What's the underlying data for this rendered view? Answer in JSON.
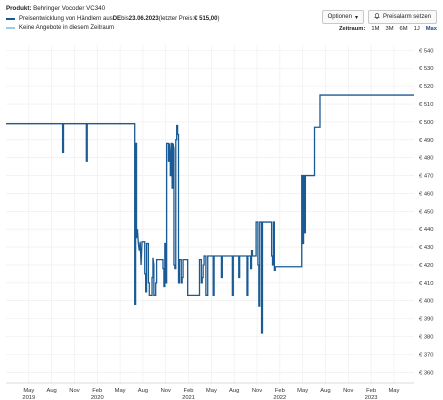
{
  "header": {
    "product_label": "Produkt:",
    "product_name": "Behringer Vocoder VC340"
  },
  "legend": {
    "items": [
      {
        "text_pre": "Preisentwicklung von Händlern aus ",
        "country": "DE",
        "text_mid": " bis ",
        "date": "23.06.2023",
        "text_post": " (letzter Preis: ",
        "price": "€ 515,00",
        "text_end": ")",
        "color": "#1a5b95"
      },
      {
        "text": "Keine Angebote in diesem Zeitraum",
        "color": "#9ecbe6"
      }
    ]
  },
  "buttons": {
    "options": "Optionen",
    "alarm": "Preisalarm setzen"
  },
  "zoom": {
    "label": "Zeitraum:",
    "options": [
      "1M",
      "3M",
      "6M",
      "1J",
      "Max"
    ],
    "active": "Max"
  },
  "colors": {
    "line": "#1a5b95",
    "grid": "#ececec"
  },
  "chart_data": {
    "type": "line",
    "y_ticks": [
      "€ 360",
      "€ 370",
      "€ 380",
      "€ 390",
      "€ 400",
      "€ 410",
      "€ 420",
      "€ 430",
      "€ 440",
      "€ 450",
      "€ 460",
      "€ 470",
      "€ 480",
      "€ 490",
      "€ 500",
      "€ 510",
      "€ 520",
      "€ 530",
      "€ 540"
    ],
    "x_ticks": [
      {
        "t": 2019.33,
        "m": "May",
        "y": "2019"
      },
      {
        "t": 2019.58,
        "m": "Aug",
        "y": ""
      },
      {
        "t": 2019.83,
        "m": "Nov",
        "y": ""
      },
      {
        "t": 2020.08,
        "m": "Feb",
        "y": "2020"
      },
      {
        "t": 2020.33,
        "m": "May",
        "y": ""
      },
      {
        "t": 2020.58,
        "m": "Aug",
        "y": ""
      },
      {
        "t": 2020.83,
        "m": "Nov",
        "y": ""
      },
      {
        "t": 2021.08,
        "m": "Feb",
        "y": "2021"
      },
      {
        "t": 2021.33,
        "m": "May",
        "y": ""
      },
      {
        "t": 2021.58,
        "m": "Aug",
        "y": ""
      },
      {
        "t": 2021.83,
        "m": "Nov",
        "y": ""
      },
      {
        "t": 2022.08,
        "m": "Feb",
        "y": "2022"
      },
      {
        "t": 2022.33,
        "m": "May",
        "y": ""
      },
      {
        "t": 2022.58,
        "m": "Aug",
        "y": ""
      },
      {
        "t": 2022.83,
        "m": "Nov",
        "y": ""
      },
      {
        "t": 2023.08,
        "m": "Feb",
        "y": "2023"
      },
      {
        "t": 2023.33,
        "m": "May",
        "y": ""
      }
    ],
    "x_range": [
      2019.08,
      2023.55
    ],
    "y_range": [
      354,
      543
    ],
    "series": [
      {
        "points": [
          [
            2019.08,
            499
          ],
          [
            2019.7,
            499
          ],
          [
            2019.7,
            483
          ],
          [
            2019.71,
            483
          ],
          [
            2019.71,
            499
          ],
          [
            2019.96,
            499
          ],
          [
            2019.96,
            478
          ],
          [
            2019.97,
            478
          ],
          [
            2019.97,
            499
          ],
          [
            2020.49,
            499
          ],
          [
            2020.49,
            398
          ],
          [
            2020.5,
            398
          ],
          [
            2020.5,
            488
          ],
          [
            2020.51,
            488
          ],
          [
            2020.51,
            435
          ],
          [
            2020.52,
            440
          ],
          [
            2020.53,
            432
          ],
          [
            2020.54,
            428
          ],
          [
            2020.55,
            433
          ],
          [
            2020.56,
            420
          ],
          [
            2020.57,
            433
          ],
          [
            2020.6,
            433
          ],
          [
            2020.6,
            415
          ],
          [
            2020.61,
            415
          ],
          [
            2020.61,
            405
          ],
          [
            2020.62,
            405
          ],
          [
            2020.62,
            432
          ],
          [
            2020.64,
            432
          ],
          [
            2020.64,
            410
          ],
          [
            2020.65,
            410
          ],
          [
            2020.65,
            403
          ],
          [
            2020.68,
            403
          ],
          [
            2020.68,
            413
          ],
          [
            2020.69,
            413
          ],
          [
            2020.69,
            424
          ],
          [
            2020.7,
            420
          ],
          [
            2020.7,
            403
          ],
          [
            2020.72,
            403
          ],
          [
            2020.72,
            410
          ],
          [
            2020.73,
            410
          ],
          [
            2020.73,
            423
          ],
          [
            2020.8,
            423
          ],
          [
            2020.8,
            418
          ],
          [
            2020.81,
            418
          ],
          [
            2020.81,
            408
          ],
          [
            2020.82,
            408
          ],
          [
            2020.82,
            432
          ],
          [
            2020.83,
            432
          ],
          [
            2020.83,
            410
          ],
          [
            2020.84,
            410
          ],
          [
            2020.84,
            488
          ],
          [
            2020.86,
            488
          ],
          [
            2020.86,
            478
          ],
          [
            2020.87,
            478
          ],
          [
            2020.87,
            488
          ],
          [
            2020.88,
            480
          ],
          [
            2020.88,
            470
          ],
          [
            2020.89,
            470
          ],
          [
            2020.89,
            488
          ],
          [
            2020.9,
            488
          ],
          [
            2020.9,
            463
          ],
          [
            2020.91,
            463
          ],
          [
            2020.91,
            488
          ],
          [
            2020.92,
            485
          ],
          [
            2020.92,
            420
          ],
          [
            2020.93,
            420
          ],
          [
            2020.93,
            418
          ],
          [
            2020.94,
            418
          ],
          [
            2020.94,
            490
          ],
          [
            2020.95,
            490
          ],
          [
            2020.95,
            498
          ],
          [
            2020.96,
            498
          ],
          [
            2020.96,
            493
          ],
          [
            2020.97,
            493
          ],
          [
            2020.97,
            410
          ],
          [
            2020.98,
            410
          ],
          [
            2020.98,
            423
          ],
          [
            2021.0,
            423
          ],
          [
            2021.0,
            410
          ],
          [
            2021.01,
            410
          ],
          [
            2021.01,
            413
          ],
          [
            2021.02,
            413
          ],
          [
            2021.02,
            423
          ],
          [
            2021.07,
            423
          ],
          [
            2021.07,
            403
          ],
          [
            2021.2,
            403
          ],
          [
            2021.2,
            423
          ],
          [
            2021.22,
            423
          ],
          [
            2021.22,
            410
          ],
          [
            2021.23,
            410
          ],
          [
            2021.23,
            413
          ],
          [
            2021.24,
            413
          ],
          [
            2021.24,
            420
          ],
          [
            2021.25,
            420
          ],
          [
            2021.25,
            425
          ],
          [
            2021.27,
            425
          ],
          [
            2021.27,
            403
          ],
          [
            2021.29,
            403
          ],
          [
            2021.29,
            425
          ],
          [
            2021.35,
            425
          ],
          [
            2021.35,
            403
          ],
          [
            2021.36,
            403
          ],
          [
            2021.36,
            425
          ],
          [
            2021.44,
            425
          ],
          [
            2021.44,
            413
          ],
          [
            2021.45,
            413
          ],
          [
            2021.45,
            425
          ],
          [
            2021.56,
            425
          ],
          [
            2021.56,
            403
          ],
          [
            2021.57,
            403
          ],
          [
            2021.57,
            425
          ],
          [
            2021.63,
            425
          ],
          [
            2021.63,
            413
          ],
          [
            2021.64,
            413
          ],
          [
            2021.64,
            425
          ],
          [
            2021.72,
            425
          ],
          [
            2021.72,
            403
          ],
          [
            2021.73,
            403
          ],
          [
            2021.73,
            425
          ],
          [
            2021.76,
            425
          ],
          [
            2021.76,
            418
          ],
          [
            2021.77,
            418
          ],
          [
            2021.77,
            428
          ],
          [
            2021.78,
            428
          ],
          [
            2021.78,
            425
          ],
          [
            2021.82,
            425
          ],
          [
            2021.82,
            444
          ],
          [
            2021.84,
            444
          ],
          [
            2021.84,
            420
          ],
          [
            2021.85,
            420
          ],
          [
            2021.85,
            397
          ],
          [
            2021.86,
            397
          ],
          [
            2021.86,
            444
          ],
          [
            2021.88,
            444
          ],
          [
            2021.88,
            382
          ],
          [
            2021.89,
            382
          ],
          [
            2021.89,
            444
          ],
          [
            2021.99,
            444
          ],
          [
            2021.99,
            425
          ],
          [
            2022.0,
            425
          ],
          [
            2022.0,
            420
          ],
          [
            2022.01,
            420
          ],
          [
            2022.01,
            444
          ],
          [
            2022.02,
            444
          ],
          [
            2022.02,
            417
          ],
          [
            2022.03,
            417
          ],
          [
            2022.03,
            419
          ],
          [
            2022.32,
            419
          ],
          [
            2022.32,
            470
          ],
          [
            2022.33,
            470
          ],
          [
            2022.33,
            432
          ],
          [
            2022.34,
            432
          ],
          [
            2022.34,
            470
          ],
          [
            2022.35,
            470
          ],
          [
            2022.35,
            438
          ],
          [
            2022.36,
            438
          ],
          [
            2022.36,
            470
          ],
          [
            2022.46,
            470
          ],
          [
            2022.46,
            497
          ],
          [
            2022.52,
            497
          ],
          [
            2022.52,
            515
          ],
          [
            2023.55,
            515
          ]
        ]
      }
    ]
  }
}
